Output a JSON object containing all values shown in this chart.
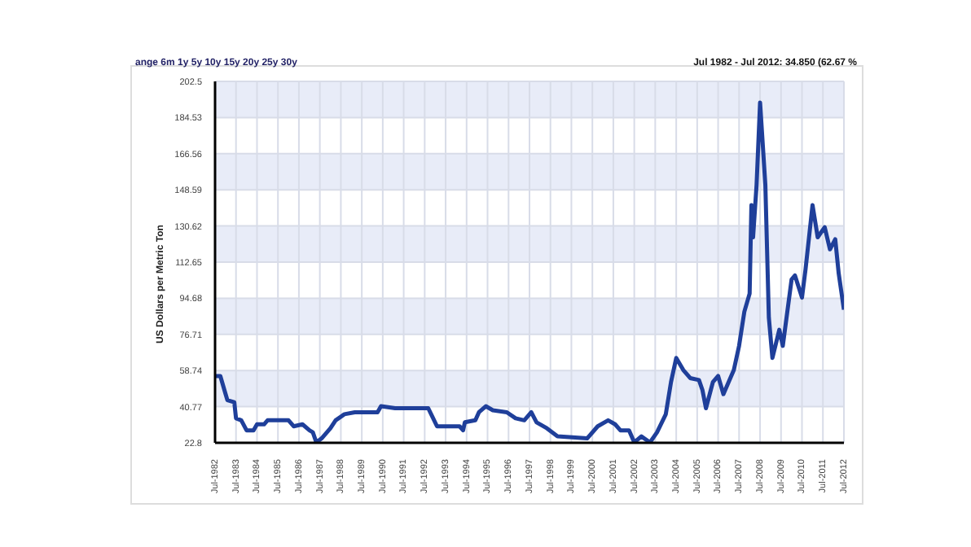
{
  "chart_data": {
    "type": "line",
    "ylabel": "US Dollars per Metric Ton",
    "annotations": [
      "ange 6m 1y 5y 10y 15y 20y 25y 30y",
      "Jul 1982 - Jul 2012: 34.850 (62.67 %"
    ],
    "series": [
      {
        "color": "#1f3f9a",
        "x": [
          "1982-07",
          "1982-10",
          "1983-01",
          "1983-02",
          "1983-06",
          "1983-07",
          "1983-10",
          "1984-01",
          "1984-05",
          "1984-07",
          "1984-11",
          "1985-01",
          "1986-01",
          "1986-04",
          "1986-09",
          "1987-01",
          "1987-03",
          "1987-05",
          "1987-08",
          "1988-01",
          "1988-04",
          "1988-09",
          "1989-03",
          "1990-04",
          "1990-06",
          "1991-02",
          "1992-09",
          "1993-02",
          "1994-03",
          "1994-05",
          "1994-06",
          "1994-12",
          "1995-02",
          "1995-06",
          "1995-10",
          "1996-06",
          "1996-11",
          "1997-04",
          "1997-08",
          "1997-11",
          "1998-05",
          "1998-11",
          "2000-04",
          "2000-10",
          "2001-04",
          "2001-08",
          "2001-11",
          "2002-04",
          "2002-07",
          "2002-11",
          "2003-04",
          "2003-08",
          "2004-01",
          "2004-04",
          "2004-07",
          "2004-11",
          "2005-03",
          "2005-08",
          "2005-10",
          "2005-12",
          "2006-04",
          "2006-07",
          "2006-10",
          "2007-04",
          "2007-07",
          "2007-10",
          "2008-01",
          "2008-02",
          "2008-03",
          "2008-05",
          "2008-07",
          "2008-10",
          "2008-12",
          "2009-02",
          "2009-06",
          "2009-08",
          "2010-01",
          "2010-03",
          "2010-07",
          "2010-09",
          "2011-01",
          "2011-04",
          "2011-08",
          "2011-11",
          "2012-02",
          "2012-04",
          "2012-07"
        ],
        "values": [
          56,
          56,
          47,
          44,
          43,
          35,
          34,
          29,
          29,
          32,
          32,
          34,
          34,
          31,
          32,
          29,
          28,
          23,
          25,
          30,
          34,
          37,
          38,
          38,
          41,
          40,
          40,
          31,
          31,
          29,
          33,
          34,
          38,
          41,
          39,
          38,
          35,
          34,
          38,
          33,
          30,
          26,
          25,
          31,
          34,
          32,
          29,
          29,
          23,
          26,
          23,
          28,
          37,
          53,
          65,
          59,
          55,
          54,
          49,
          40,
          53,
          56,
          47,
          59,
          71,
          88,
          97,
          141,
          125,
          151,
          192,
          151,
          85,
          65,
          79,
          71,
          104,
          106,
          95,
          109,
          141,
          125,
          130,
          119,
          124,
          107,
          89
        ]
      }
    ],
    "xlim": [
      "1982-07",
      "2012-07"
    ],
    "xticks": [
      {
        "value": "1982-07",
        "label": "Jul-1982"
      },
      {
        "value": "1983-07",
        "label": "Jul-1983"
      },
      {
        "value": "1984-07",
        "label": "Jul-1984"
      },
      {
        "value": "1985-07",
        "label": "Jul-1985"
      },
      {
        "value": "1986-07",
        "label": "Jul-1986"
      },
      {
        "value": "1987-07",
        "label": "Jul-1987"
      },
      {
        "value": "1988-07",
        "label": "Jul-1988"
      },
      {
        "value": "1989-07",
        "label": "Jul-1989"
      },
      {
        "value": "1990-07",
        "label": "Jul-1990"
      },
      {
        "value": "1991-07",
        "label": "Jul-1991"
      },
      {
        "value": "1992-07",
        "label": "Jul-1992"
      },
      {
        "value": "1993-07",
        "label": "Jul-1993"
      },
      {
        "value": "1994-07",
        "label": "Jul-1994"
      },
      {
        "value": "1995-07",
        "label": "Jul-1995"
      },
      {
        "value": "1996-07",
        "label": "Jul-1996"
      },
      {
        "value": "1997-07",
        "label": "Jul-1997"
      },
      {
        "value": "1998-07",
        "label": "Jul-1998"
      },
      {
        "value": "1999-07",
        "label": "Jul-1999"
      },
      {
        "value": "2000-07",
        "label": "Jul-2000"
      },
      {
        "value": "2001-07",
        "label": "Jul-2001"
      },
      {
        "value": "2002-07",
        "label": "Jul-2002"
      },
      {
        "value": "2003-07",
        "label": "Jul-2003"
      },
      {
        "value": "2004-07",
        "label": "Jul-2004"
      },
      {
        "value": "2005-07",
        "label": "Jul-2005"
      },
      {
        "value": "2006-07",
        "label": "Jul-2006"
      },
      {
        "value": "2007-07",
        "label": "Jul-2007"
      },
      {
        "value": "2008-07",
        "label": "Jul-2008"
      },
      {
        "value": "2009-07",
        "label": "Jul-2009"
      },
      {
        "value": "2010-07",
        "label": "Jul-2010"
      },
      {
        "value": "2011-07",
        "label": "Jul-2011"
      },
      {
        "value": "2012-07",
        "label": "Jul-2012"
      }
    ],
    "ylim": [
      22.8,
      202.5
    ],
    "yticks": [
      22.8,
      40.77,
      58.74,
      76.71,
      94.68,
      112.65,
      130.62,
      148.59,
      166.56,
      184.53,
      202.5
    ],
    "grid": true,
    "marker": "none",
    "line_style": "solid"
  }
}
